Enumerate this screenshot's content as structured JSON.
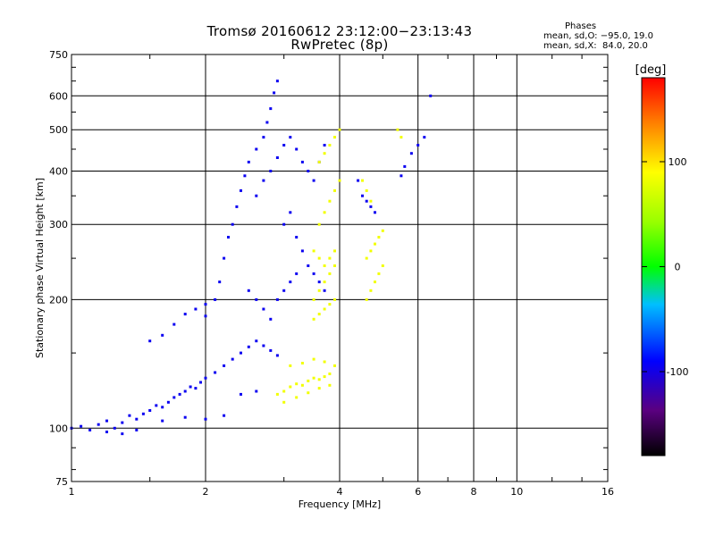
{
  "chart_data": {
    "type": "scatter",
    "title": "Tromsø 20160612 23:12:00−23:13:43",
    "subtitle": "RwPretec (8p)",
    "xlabel": "Frequency [MHz]",
    "ylabel": "Stationary phase Virtual Height [km]",
    "x_scale": "log",
    "y_scale": "log",
    "xlim": [
      1,
      16
    ],
    "ylim": [
      75,
      750
    ],
    "x_ticks": [
      1,
      2,
      4,
      6,
      8,
      10,
      16
    ],
    "y_ticks": [
      75,
      100,
      200,
      300,
      400,
      500,
      600,
      750
    ],
    "grid": true,
    "stats_box": {
      "heading": "Phases",
      "line_o": "mean, sd,O: −95.0, 19.0",
      "line_x": "mean, sd,X:  84.0, 20.0"
    },
    "colorbar": {
      "label": "[deg]",
      "range": [
        -180,
        180
      ],
      "ticks": [
        100,
        0,
        -100
      ],
      "colormap": "rainbow"
    },
    "series": [
      {
        "group": "O-mode (mean phase −95°)",
        "color_value_deg": -95,
        "points": [
          [
            1.0,
            100
          ],
          [
            1.05,
            101
          ],
          [
            1.1,
            99
          ],
          [
            1.15,
            102
          ],
          [
            1.2,
            104
          ],
          [
            1.25,
            100
          ],
          [
            1.3,
            103
          ],
          [
            1.35,
            107
          ],
          [
            1.4,
            105
          ],
          [
            1.45,
            108
          ],
          [
            1.5,
            110
          ],
          [
            1.55,
            113
          ],
          [
            1.6,
            112
          ],
          [
            1.65,
            115
          ],
          [
            1.7,
            118
          ],
          [
            1.75,
            120
          ],
          [
            1.8,
            122
          ],
          [
            1.85,
            125
          ],
          [
            1.9,
            124
          ],
          [
            1.95,
            128
          ],
          [
            2.0,
            131
          ],
          [
            2.1,
            135
          ],
          [
            2.2,
            140
          ],
          [
            2.3,
            145
          ],
          [
            2.4,
            150
          ],
          [
            2.5,
            155
          ],
          [
            2.6,
            160
          ],
          [
            2.7,
            156
          ],
          [
            2.8,
            152
          ],
          [
            2.9,
            148
          ],
          [
            2.0,
            183
          ],
          [
            2.1,
            200
          ],
          [
            2.15,
            220
          ],
          [
            2.2,
            250
          ],
          [
            2.25,
            280
          ],
          [
            2.3,
            300
          ],
          [
            2.35,
            330
          ],
          [
            2.4,
            360
          ],
          [
            2.45,
            390
          ],
          [
            2.5,
            420
          ],
          [
            2.6,
            450
          ],
          [
            2.7,
            480
          ],
          [
            2.75,
            520
          ],
          [
            2.8,
            560
          ],
          [
            2.85,
            610
          ],
          [
            2.9,
            650
          ],
          [
            2.6,
            350
          ],
          [
            2.7,
            380
          ],
          [
            2.8,
            400
          ],
          [
            2.9,
            430
          ],
          [
            3.0,
            460
          ],
          [
            3.1,
            480
          ],
          [
            3.2,
            450
          ],
          [
            3.3,
            420
          ],
          [
            3.4,
            400
          ],
          [
            3.5,
            380
          ],
          [
            3.6,
            420
          ],
          [
            3.7,
            460
          ],
          [
            3.0,
            300
          ],
          [
            3.1,
            320
          ],
          [
            3.2,
            280
          ],
          [
            3.3,
            260
          ],
          [
            3.4,
            240
          ],
          [
            3.5,
            230
          ],
          [
            3.6,
            220
          ],
          [
            3.7,
            210
          ],
          [
            2.5,
            210
          ],
          [
            2.6,
            200
          ],
          [
            2.7,
            190
          ],
          [
            2.8,
            180
          ],
          [
            2.9,
            200
          ],
          [
            3.0,
            210
          ],
          [
            3.1,
            220
          ],
          [
            3.2,
            230
          ],
          [
            1.8,
            185
          ],
          [
            1.9,
            190
          ],
          [
            2.0,
            195
          ],
          [
            1.7,
            175
          ],
          [
            1.6,
            165
          ],
          [
            1.5,
            160
          ],
          [
            4.4,
            380
          ],
          [
            4.5,
            350
          ],
          [
            4.6,
            340
          ],
          [
            4.7,
            330
          ],
          [
            4.8,
            320
          ],
          [
            5.5,
            390
          ],
          [
            5.6,
            410
          ],
          [
            5.8,
            440
          ],
          [
            6.0,
            460
          ],
          [
            6.2,
            480
          ],
          [
            6.4,
            600
          ],
          [
            1.2,
            98
          ],
          [
            1.3,
            97
          ],
          [
            1.4,
            99
          ],
          [
            1.6,
            104
          ],
          [
            1.8,
            106
          ],
          [
            2.0,
            105
          ],
          [
            2.2,
            107
          ],
          [
            2.4,
            120
          ],
          [
            2.6,
            122
          ]
        ]
      },
      {
        "group": "X-mode (mean phase 84°)",
        "color_value_deg": 84,
        "points": [
          [
            2.9,
            120
          ],
          [
            3.0,
            122
          ],
          [
            3.1,
            125
          ],
          [
            3.2,
            127
          ],
          [
            3.3,
            126
          ],
          [
            3.4,
            129
          ],
          [
            3.5,
            131
          ],
          [
            3.6,
            130
          ],
          [
            3.7,
            132
          ],
          [
            3.8,
            134
          ],
          [
            3.0,
            115
          ],
          [
            3.2,
            118
          ],
          [
            3.4,
            121
          ],
          [
            3.6,
            124
          ],
          [
            3.8,
            126
          ],
          [
            3.1,
            140
          ],
          [
            3.3,
            142
          ],
          [
            3.5,
            145
          ],
          [
            3.7,
            143
          ],
          [
            3.9,
            140
          ],
          [
            3.5,
            200
          ],
          [
            3.6,
            210
          ],
          [
            3.7,
            220
          ],
          [
            3.8,
            230
          ],
          [
            3.9,
            240
          ],
          [
            3.5,
            180
          ],
          [
            3.6,
            185
          ],
          [
            3.7,
            190
          ],
          [
            3.8,
            195
          ],
          [
            3.9,
            200
          ],
          [
            3.6,
            300
          ],
          [
            3.7,
            320
          ],
          [
            3.8,
            340
          ],
          [
            3.9,
            360
          ],
          [
            4.0,
            380
          ],
          [
            3.6,
            420
          ],
          [
            3.7,
            440
          ],
          [
            3.8,
            460
          ],
          [
            3.9,
            480
          ],
          [
            4.0,
            500
          ],
          [
            3.5,
            260
          ],
          [
            3.6,
            250
          ],
          [
            3.7,
            240
          ],
          [
            3.8,
            250
          ],
          [
            3.9,
            260
          ],
          [
            4.6,
            200
          ],
          [
            4.7,
            210
          ],
          [
            4.8,
            220
          ],
          [
            4.9,
            230
          ],
          [
            5.0,
            240
          ],
          [
            4.6,
            250
          ],
          [
            4.7,
            260
          ],
          [
            4.8,
            270
          ],
          [
            4.9,
            280
          ],
          [
            5.0,
            290
          ],
          [
            4.5,
            380
          ],
          [
            4.6,
            360
          ],
          [
            4.7,
            340
          ],
          [
            5.4,
            500
          ],
          [
            5.5,
            480
          ]
        ]
      }
    ]
  }
}
